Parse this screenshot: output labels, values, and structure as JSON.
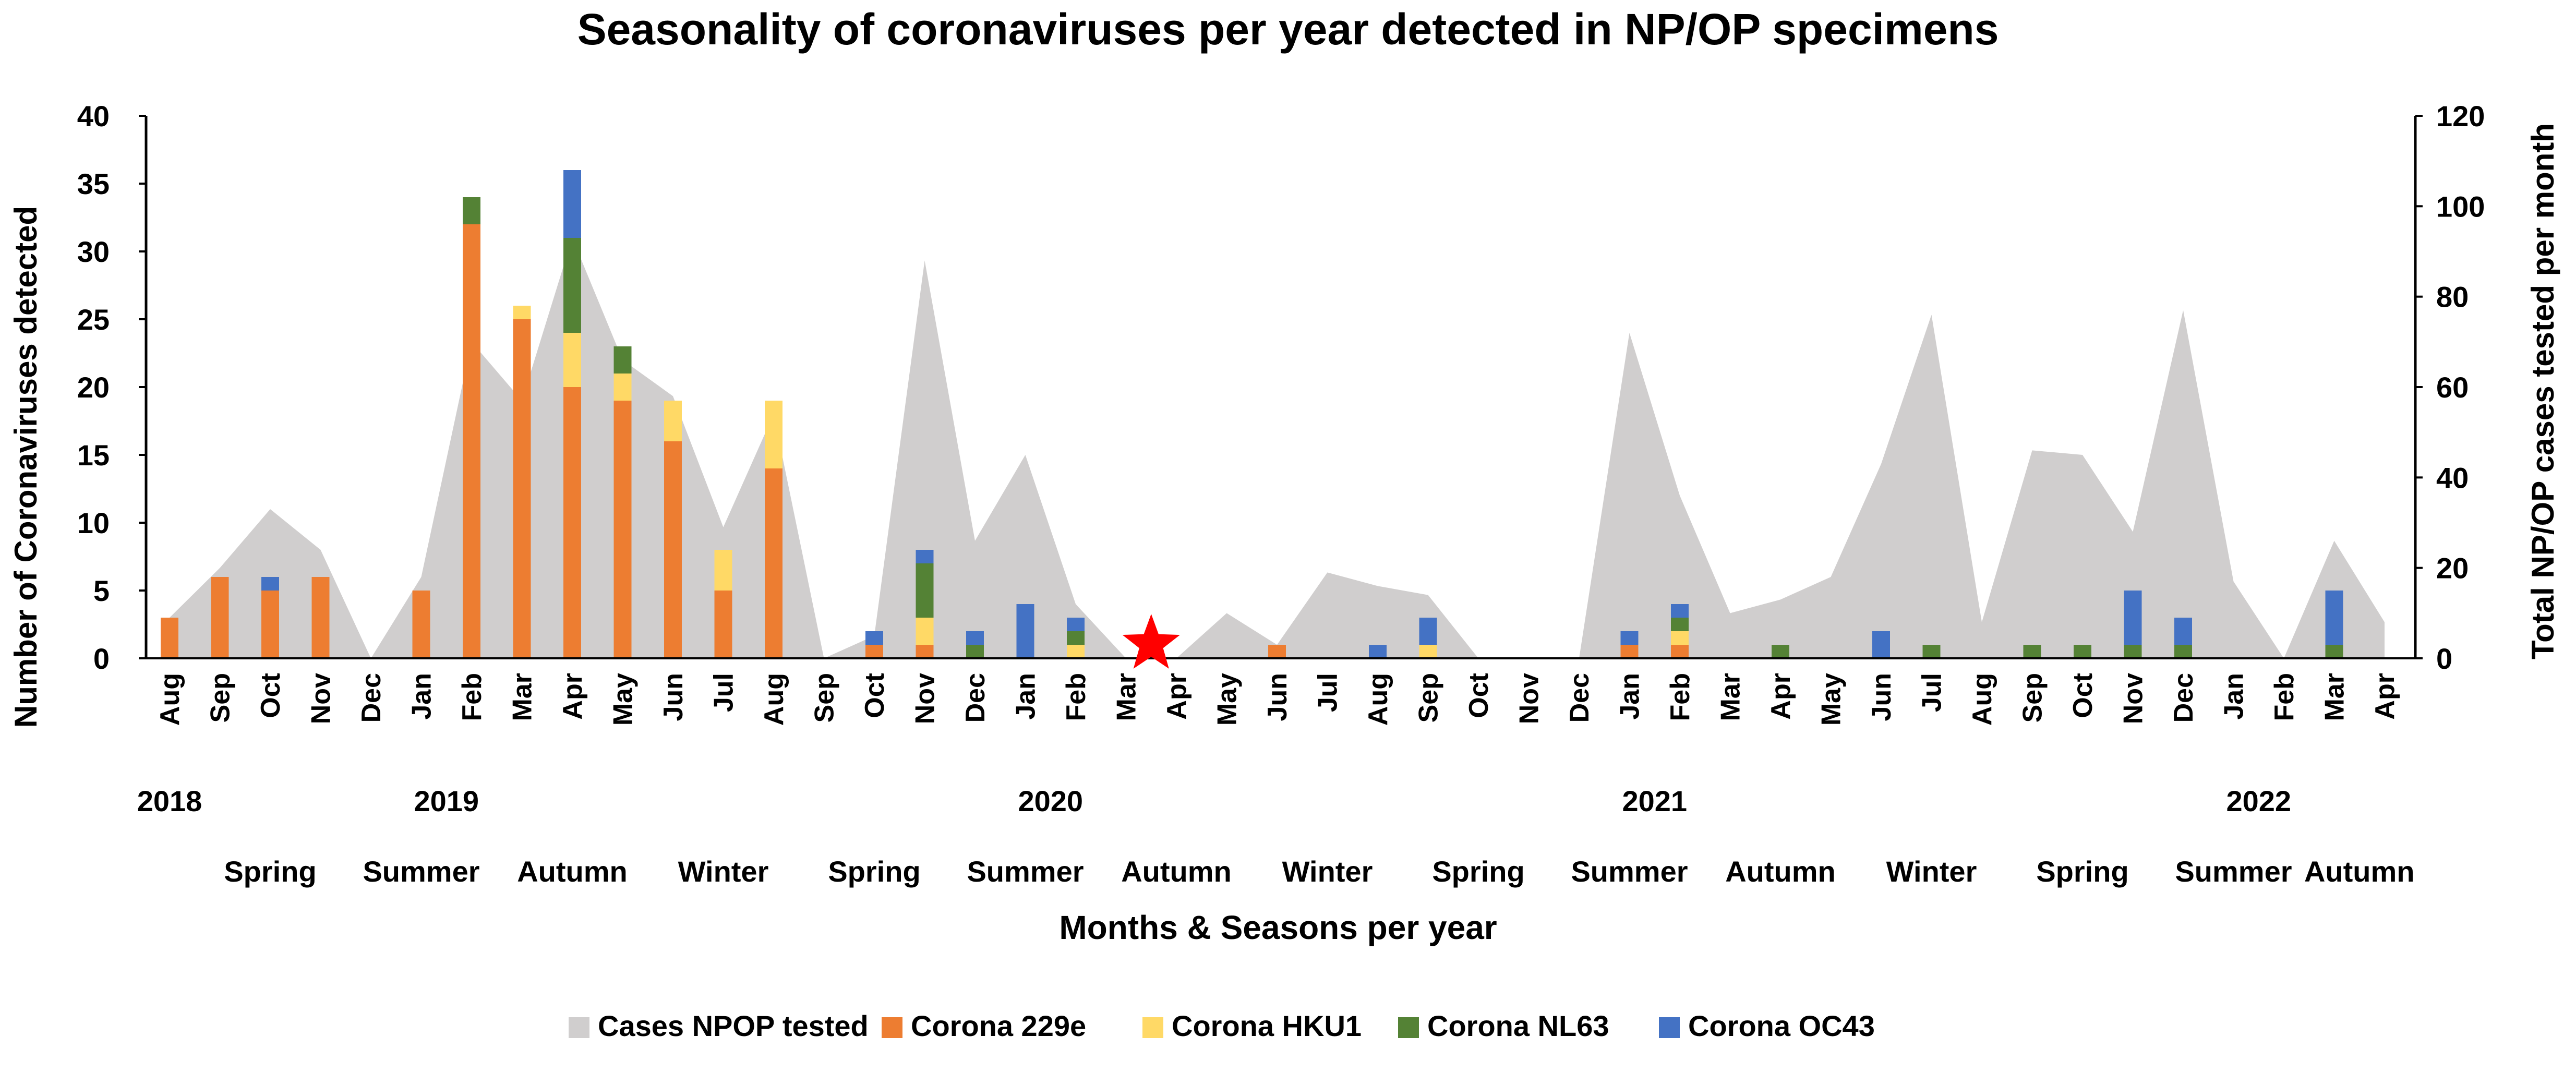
{
  "chart_data": {
    "type": "bar",
    "title": "Seasonality of coronaviruses per year detected in NP/OP specimens",
    "xlabel": "Months & Seasons per year",
    "ylabel": "Number of Coronaviruses detected",
    "y2label": "Total NP/OP cases tested per month",
    "ylim": [
      0,
      40
    ],
    "y2lim": [
      0,
      120
    ],
    "yticks": [
      "0",
      "5",
      "10",
      "15",
      "20",
      "25",
      "30",
      "35",
      "40"
    ],
    "y2ticks": [
      "0",
      "20",
      "40",
      "60",
      "80",
      "100",
      "120"
    ],
    "categories": [
      "Aug",
      "Sep",
      "Oct",
      "Nov",
      "Dec",
      "Jan",
      "Feb",
      "Mar",
      "Apr",
      "May",
      "Jun",
      "Jul",
      "Aug",
      "Sep",
      "Oct",
      "Nov",
      "Dec",
      "Jan",
      "Feb",
      "Mar",
      "Apr",
      "May",
      "Jun",
      "Jul",
      "Aug",
      "Sep",
      "Oct",
      "Nov",
      "Dec",
      "Jan",
      "Feb",
      "Mar",
      "Apr",
      "May",
      "Jun",
      "Jul",
      "Aug",
      "Sep",
      "Oct",
      "Nov",
      "Dec",
      "Jan",
      "Feb",
      "Mar",
      "Apr"
    ],
    "years": [
      {
        "label": "2018",
        "at": 0
      },
      {
        "label": "2019",
        "at": 5.5
      },
      {
        "label": "2020",
        "at": 17.5
      },
      {
        "label": "2021",
        "at": 29.5
      },
      {
        "label": "2022",
        "at": 41.5
      }
    ],
    "seasons": [
      {
        "label": "Spring",
        "at": 2
      },
      {
        "label": "Summer",
        "at": 5
      },
      {
        "label": "Autumn",
        "at": 8
      },
      {
        "label": "Winter",
        "at": 11
      },
      {
        "label": "Spring",
        "at": 14
      },
      {
        "label": "Summer",
        "at": 17
      },
      {
        "label": "Autumn",
        "at": 20
      },
      {
        "label": "Winter",
        "at": 23
      },
      {
        "label": "Spring",
        "at": 26
      },
      {
        "label": "Summer",
        "at": 29
      },
      {
        "label": "Autumn",
        "at": 32
      },
      {
        "label": "Winter",
        "at": 35
      },
      {
        "label": "Spring",
        "at": 38
      },
      {
        "label": "Summer",
        "at": 41
      },
      {
        "label": "Autumn",
        "at": 43.5
      }
    ],
    "area_series": {
      "name": "Cases NPOP tested",
      "axis": "secondary",
      "color": "#d0cece",
      "values": [
        9,
        20,
        33,
        24,
        0,
        18,
        70,
        57,
        93,
        66,
        58,
        29,
        54,
        0,
        5,
        88,
        26,
        45,
        12,
        0,
        0,
        10,
        3,
        19,
        16,
        14,
        0,
        0,
        0,
        72,
        36,
        10,
        13,
        18,
        43,
        76,
        8,
        46,
        45,
        28,
        77,
        17,
        0,
        26,
        8
      ]
    },
    "series": [
      {
        "name": "Corona 229e",
        "color": "#ed7d31",
        "values": [
          3,
          6,
          5,
          6,
          0,
          5,
          32,
          25,
          20,
          19,
          16,
          5,
          14,
          0,
          1,
          1,
          0,
          0,
          0,
          0,
          0,
          0,
          1,
          0,
          0,
          0,
          0,
          0,
          0,
          1,
          1,
          0,
          0,
          0,
          0,
          0,
          0,
          0,
          0,
          0,
          0,
          0,
          0,
          0,
          0
        ]
      },
      {
        "name": "Corona HKU1",
        "color": "#ffd966",
        "values": [
          0,
          0,
          0,
          0,
          0,
          0,
          0,
          1,
          4,
          2,
          3,
          3,
          5,
          0,
          0,
          2,
          0,
          0,
          1,
          0,
          0,
          0,
          0,
          0,
          0,
          1,
          0,
          0,
          0,
          0,
          1,
          0,
          0,
          0,
          0,
          0,
          0,
          0,
          0,
          0,
          0,
          0,
          0,
          0,
          0
        ]
      },
      {
        "name": "Corona NL63",
        "color": "#548235",
        "values": [
          0,
          0,
          0,
          0,
          0,
          0,
          2,
          0,
          7,
          2,
          0,
          0,
          0,
          0,
          0,
          4,
          1,
          0,
          1,
          0,
          0,
          0,
          0,
          0,
          0,
          0,
          0,
          0,
          0,
          0,
          1,
          0,
          1,
          0,
          0,
          1,
          0,
          1,
          1,
          1,
          1,
          0,
          0,
          1,
          0
        ]
      },
      {
        "name": "Corona OC43",
        "color": "#4472c4",
        "values": [
          0,
          0,
          1,
          0,
          0,
          0,
          0,
          0,
          5,
          0,
          0,
          0,
          0,
          0,
          1,
          1,
          1,
          4,
          1,
          0,
          0,
          0,
          0,
          0,
          1,
          2,
          0,
          0,
          0,
          1,
          1,
          0,
          0,
          0,
          2,
          0,
          0,
          0,
          0,
          4,
          2,
          0,
          0,
          4,
          0
        ]
      }
    ],
    "marker": {
      "type": "star",
      "color": "#ff0000",
      "between": [
        19,
        20
      ]
    },
    "legend": [
      "Cases NPOP tested",
      "Corona 229e",
      "Corona HKU1",
      "Corona NL63",
      "Corona OC43"
    ],
    "legend_position": "bottom"
  }
}
